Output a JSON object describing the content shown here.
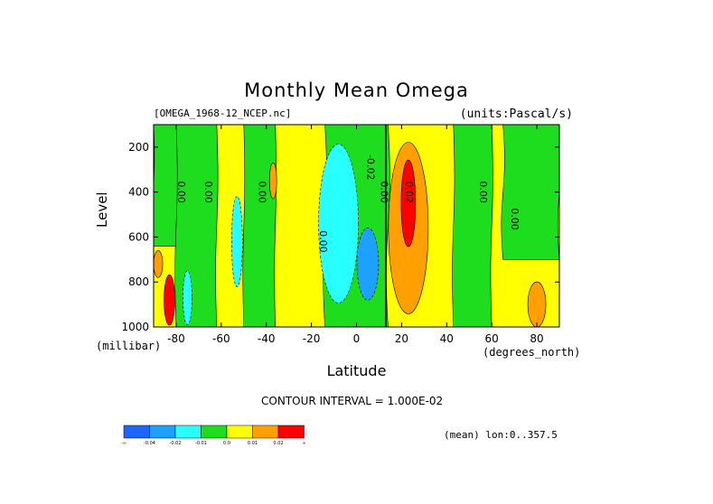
{
  "chart_data": {
    "type": "heatmap",
    "title": "Monthly Mean Omega",
    "file_label": "[OMEGA_1968-12_NCEP.nc]",
    "units_label": "(units:Pascal/s)",
    "xlabel": "Latitude",
    "x_unit": "(degrees_north)",
    "ylabel": "Level",
    "y_unit": "(millibar)",
    "xlim": [
      -90,
      90
    ],
    "ylim": [
      1000,
      100
    ],
    "x_ticks": [
      -80,
      -60,
      -40,
      -20,
      0,
      20,
      40,
      60,
      80
    ],
    "y_ticks": [
      1000,
      800,
      600,
      400,
      200
    ],
    "contour_interval": "CONTOUR INTERVAL = 1.000E-02",
    "mean_note": "(mean) lon:0..357.5",
    "colorbar": {
      "labels": [
        "-∞",
        "-0.04",
        "-0.02",
        "-0.01",
        "0.0",
        "0.01",
        "0.02",
        "∞"
      ],
      "colors": [
        "#1e64ff",
        "#1ea0ff",
        "#28ffff",
        "#1edc1e",
        "#ffff00",
        "#ffa000",
        "#ff0000"
      ]
    },
    "contour_labels": [
      {
        "text": "0.00",
        "lat": -78,
        "lev": 400
      },
      {
        "text": "0.00",
        "lat": -66,
        "lev": 400
      },
      {
        "text": "0.00",
        "lat": -42,
        "lev": 400
      },
      {
        "text": "0.00",
        "lat": -15,
        "lev": 620
      },
      {
        "text": "-0.02",
        "lat": 6,
        "lev": 290
      },
      {
        "text": "0.00",
        "lat": 12,
        "lev": 400
      },
      {
        "text": "0.02",
        "lat": 23,
        "lev": 400
      },
      {
        "text": "0.00",
        "lat": 56,
        "lev": 400
      },
      {
        "text": "0.00",
        "lat": 70,
        "lev": 520
      }
    ],
    "fields": {
      "yellow_background": 0.005,
      "green_bands": [
        {
          "lat_from": -90,
          "lat_to": -78,
          "lev_top": 100,
          "lev_bottom": 640,
          "value": -0.005
        },
        {
          "lat_from": -80,
          "lat_to": -62,
          "lev_top": 100,
          "lev_bottom": 1000,
          "value": -0.005
        },
        {
          "lat_from": -50,
          "lat_to": -36,
          "lev_top": 100,
          "lev_bottom": 1000,
          "value": -0.005
        },
        {
          "lat_from": -14,
          "lat_to": 14,
          "lev_top": 100,
          "lev_bottom": 1000,
          "value": -0.005
        },
        {
          "lat_from": 43,
          "lat_to": 60,
          "lev_top": 100,
          "lev_bottom": 1000,
          "value": -0.005
        },
        {
          "lat_from": 65,
          "lat_to": 90,
          "lev_top": 100,
          "lev_bottom": 700,
          "value": -0.005
        }
      ],
      "cyan_cells": [
        {
          "lat_center": -8,
          "lev_center": 540,
          "value": -0.015
        },
        {
          "lat_center": -53,
          "lev_center": 620,
          "value": -0.015
        },
        {
          "lat_center": -75,
          "lev_center": 870,
          "value": -0.015
        }
      ],
      "blue_cells": [
        {
          "lat_center": 5,
          "lev_center": 720,
          "value": -0.03
        }
      ],
      "orange_cells": [
        {
          "lat_center": 23,
          "lev_center": 560,
          "value": 0.015
        },
        {
          "lat_center": -88,
          "lev_center": 720,
          "value": 0.015
        },
        {
          "lat_center": 80,
          "lev_center": 900,
          "value": 0.015
        },
        {
          "lat_center": -37,
          "lev_center": 350,
          "value": 0.015
        }
      ],
      "red_cells": [
        {
          "lat_center": 23,
          "lev_center": 450,
          "value": 0.025
        },
        {
          "lat_center": -83,
          "lev_center": 880,
          "value": 0.025
        }
      ]
    }
  }
}
